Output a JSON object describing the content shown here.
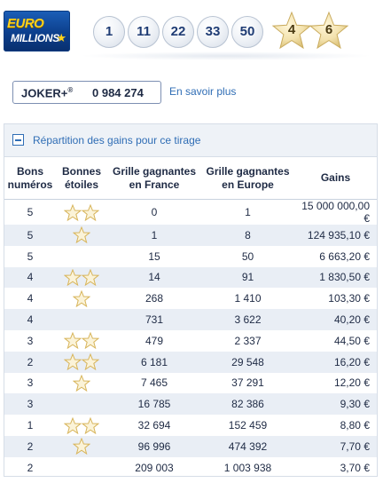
{
  "logo": {
    "line1": "EURO",
    "line2": "MILLIONS",
    "brand_color": "#0c3f8c"
  },
  "draw": {
    "balls": [
      "1",
      "11",
      "22",
      "33",
      "50"
    ],
    "stars": [
      "4",
      "6"
    ]
  },
  "joker": {
    "name": "JOKER+",
    "reg": "®",
    "number": "0 984 274",
    "link": "En savoir plus"
  },
  "panel": {
    "title": "Répartition des gains pour ce tirage"
  },
  "table": {
    "headers": {
      "bons_l1": "Bons",
      "bons_l2": "numéros",
      "etoiles_l1": "Bonnes",
      "etoiles_l2": "étoiles",
      "france_l1": "Grille gagnantes",
      "france_l2": "en France",
      "europe_l1": "Grille gagnantes",
      "europe_l2": "en Europe",
      "gains": "Gains"
    },
    "rows": [
      {
        "numeros": "5",
        "etoiles": 2,
        "france": "0",
        "europe": "1",
        "gains": "15 000 000,00 €"
      },
      {
        "numeros": "5",
        "etoiles": 1,
        "france": "1",
        "europe": "8",
        "gains": "124 935,10 €"
      },
      {
        "numeros": "5",
        "etoiles": 0,
        "france": "15",
        "europe": "50",
        "gains": "6 663,20 €"
      },
      {
        "numeros": "4",
        "etoiles": 2,
        "france": "14",
        "europe": "91",
        "gains": "1 830,50 €"
      },
      {
        "numeros": "4",
        "etoiles": 1,
        "france": "268",
        "europe": "1 410",
        "gains": "103,30 €"
      },
      {
        "numeros": "4",
        "etoiles": 0,
        "france": "731",
        "europe": "3 622",
        "gains": "40,20 €"
      },
      {
        "numeros": "3",
        "etoiles": 2,
        "france": "479",
        "europe": "2 337",
        "gains": "44,50 €"
      },
      {
        "numeros": "2",
        "etoiles": 2,
        "france": "6 181",
        "europe": "29 548",
        "gains": "16,20 €"
      },
      {
        "numeros": "3",
        "etoiles": 1,
        "france": "7 465",
        "europe": "37 291",
        "gains": "12,20 €"
      },
      {
        "numeros": "3",
        "etoiles": 0,
        "france": "16 785",
        "europe": "82 386",
        "gains": "9,30 €"
      },
      {
        "numeros": "1",
        "etoiles": 2,
        "france": "32 694",
        "europe": "152 459",
        "gains": "8,80 €"
      },
      {
        "numeros": "2",
        "etoiles": 1,
        "france": "96 996",
        "europe": "474 392",
        "gains": "7,70 €"
      },
      {
        "numeros": "2",
        "etoiles": 0,
        "france": "209 003",
        "europe": "1 003 938",
        "gains": "3,70 €"
      }
    ]
  }
}
